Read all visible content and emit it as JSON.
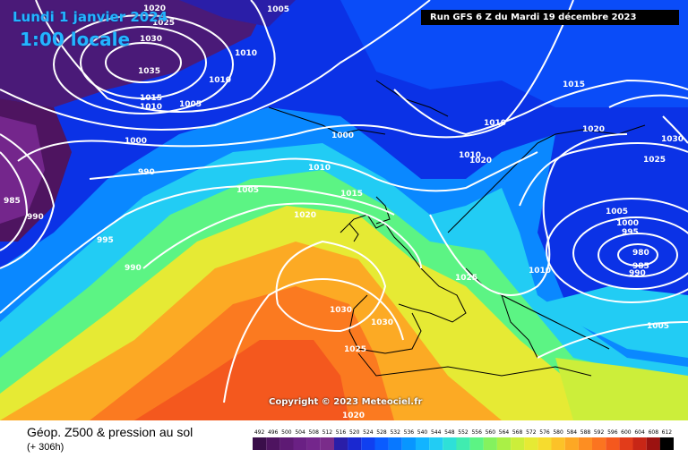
{
  "header": {
    "valid_date": "Lundi 1 janvier 2024",
    "valid_hour": "1:00 locale",
    "run_info": "Run GFS 6 Z du Mardi 19 décembre 2023"
  },
  "copyright": "Copyright © 2023 Meteociel.fr",
  "footer": {
    "title": "Géop. Z500 & pression au sol",
    "lead": "(+ 306h)"
  },
  "scale": {
    "values": [
      "492",
      "496",
      "500",
      "504",
      "508",
      "512",
      "516",
      "520",
      "524",
      "528",
      "532",
      "536",
      "540",
      "544",
      "548",
      "552",
      "556",
      "560",
      "564",
      "568",
      "572",
      "576",
      "580",
      "584",
      "588",
      "592",
      "596",
      "600",
      "604",
      "608",
      "612"
    ],
    "colors": [
      "#3a0e4a",
      "#4e1460",
      "#5e1a74",
      "#6a2084",
      "#74268c",
      "#7a2c8a",
      "#2a1ea8",
      "#1a28d0",
      "#1040f0",
      "#0a5cff",
      "#0878ff",
      "#0896ff",
      "#12b4ff",
      "#22ccf4",
      "#2ee0d8",
      "#40ecb0",
      "#5cf484",
      "#84f25e",
      "#aaf046",
      "#ccee3a",
      "#e6ea34",
      "#f6dc2e",
      "#fcc228",
      "#fda824",
      "#fd8e22",
      "#fb7420",
      "#f4581e",
      "#e23c1a",
      "#c82616",
      "#9c1210",
      "#000000"
    ]
  },
  "isobar_labels": [
    {
      "text": "1005"
    },
    {
      "text": "1020"
    },
    {
      "text": "1025"
    },
    {
      "text": "1030"
    },
    {
      "text": "1035"
    },
    {
      "text": "1010"
    },
    {
      "text": "1010"
    },
    {
      "text": "1015"
    },
    {
      "text": "1010"
    },
    {
      "text": "1005"
    },
    {
      "text": "1000"
    },
    {
      "text": "990"
    },
    {
      "text": "985"
    },
    {
      "text": "990"
    },
    {
      "text": "995"
    },
    {
      "text": "990"
    },
    {
      "text": "1005"
    },
    {
      "text": "1000"
    },
    {
      "text": "1010"
    },
    {
      "text": "1015"
    },
    {
      "text": "1020"
    },
    {
      "text": "1030"
    },
    {
      "text": "1030"
    },
    {
      "text": "1025"
    },
    {
      "text": "1020"
    },
    {
      "text": "1015"
    },
    {
      "text": "1010"
    },
    {
      "text": "1020"
    },
    {
      "text": "1030"
    },
    {
      "text": "1010"
    },
    {
      "text": "1020"
    },
    {
      "text": "1025"
    },
    {
      "text": "1025"
    },
    {
      "text": "1005"
    },
    {
      "text": "1000"
    },
    {
      "text": "995"
    },
    {
      "text": "980"
    },
    {
      "text": "985"
    },
    {
      "text": "990"
    },
    {
      "text": "1010"
    },
    {
      "text": "1005"
    }
  ]
}
